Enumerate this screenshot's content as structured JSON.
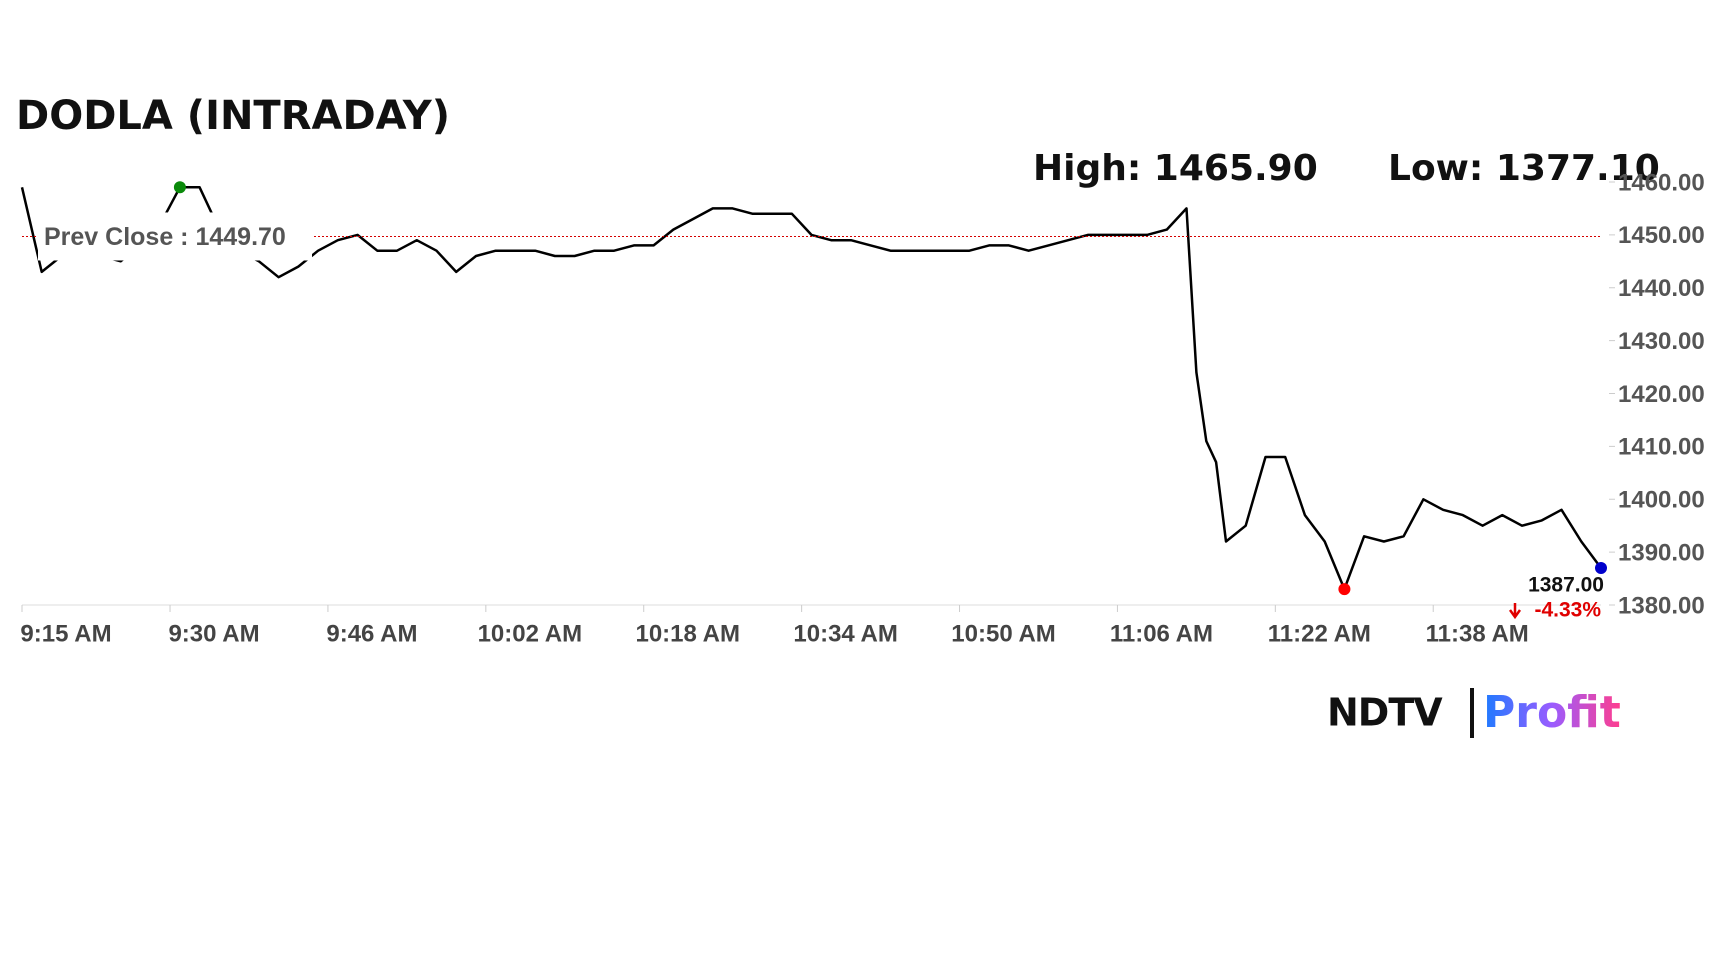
{
  "chart_data": {
    "type": "line",
    "title": "DODLA (INTRADAY)",
    "high_label": "High: 1465.90",
    "low_label": "Low: 1377.10",
    "x": [
      555,
      557,
      559,
      561,
      563,
      565,
      567,
      569,
      571,
      573,
      575,
      577,
      579,
      581,
      583,
      585,
      587,
      589,
      591,
      593,
      595,
      597,
      599,
      601,
      603,
      605,
      607,
      609,
      611,
      613,
      615,
      617,
      619,
      621,
      623,
      625,
      627,
      629,
      631,
      633,
      635,
      637,
      639,
      641,
      643,
      645,
      647,
      649,
      651,
      653,
      655,
      657,
      659,
      661,
      663,
      665,
      667,
      669,
      671,
      673,
      674,
      675,
      676,
      677,
      679,
      681,
      683,
      685,
      687,
      689,
      691,
      693,
      695,
      697,
      699,
      701,
      703,
      705,
      707,
      709,
      711,
      713,
      715
    ],
    "series": [
      {
        "name": "DODLA",
        "color": "#000000",
        "values": [
          1459,
          1443,
          1446,
          1447,
          1446,
          1445,
          1448,
          1452,
          1459,
          1459,
          1451,
          1447,
          1445,
          1442,
          1444,
          1447,
          1449,
          1450,
          1447,
          1447,
          1449,
          1447,
          1443,
          1446,
          1447,
          1447,
          1447,
          1446,
          1446,
          1447,
          1447,
          1448,
          1448,
          1451,
          1453,
          1455,
          1455,
          1454,
          1454,
          1454,
          1450,
          1449,
          1449,
          1448,
          1447,
          1447,
          1447,
          1447,
          1447,
          1448,
          1448,
          1447,
          1448,
          1449,
          1450,
          1450,
          1450,
          1450,
          1451,
          1455,
          1424,
          1411,
          1407,
          1392,
          1395,
          1408,
          1408,
          1397,
          1392,
          1383,
          1393,
          1392,
          1393,
          1400,
          1398,
          1397,
          1395,
          1397,
          1395,
          1396,
          1398,
          1392,
          1387
        ]
      }
    ],
    "xlim": [
      555,
      715
    ],
    "ylim": [
      1380,
      1460
    ],
    "xticks": [
      {
        "value": 555,
        "label": "9:15 AM"
      },
      {
        "value": 570,
        "label": "9:30 AM"
      },
      {
        "value": 586,
        "label": "9:46 AM"
      },
      {
        "value": 602,
        "label": "10:02 AM"
      },
      {
        "value": 618,
        "label": "10:18 AM"
      },
      {
        "value": 634,
        "label": "10:34 AM"
      },
      {
        "value": 650,
        "label": "10:50 AM"
      },
      {
        "value": 666,
        "label": "11:06 AM"
      },
      {
        "value": 682,
        "label": "11:22 AM"
      },
      {
        "value": 698,
        "label": "11:38 AM"
      }
    ],
    "yticks": [
      {
        "value": 1380,
        "label": "1380.00"
      },
      {
        "value": 1390,
        "label": "1390.00"
      },
      {
        "value": 1400,
        "label": "1400.00"
      },
      {
        "value": 1410,
        "label": "1410.00"
      },
      {
        "value": 1420,
        "label": "1420.00"
      },
      {
        "value": 1430,
        "label": "1430.00"
      },
      {
        "value": 1440,
        "label": "1440.00"
      },
      {
        "value": 1450,
        "label": "1450.00"
      },
      {
        "value": 1460,
        "label": "1460.00"
      }
    ],
    "reference_line": {
      "value": 1449.7,
      "label": "Prev Close : 1449.70",
      "color": "#d40000"
    },
    "high_marker": {
      "index": 8,
      "color": "#0a8a0a"
    },
    "low_marker": {
      "index": 69,
      "color": "#ff0000"
    },
    "last_marker": {
      "index": 82,
      "color": "#0000cc"
    },
    "last_price_label": "1387.00",
    "change_label": "-4.33%",
    "change_color": "#e00000"
  },
  "logo": {
    "left": "NDTV",
    "right": "Profit"
  }
}
